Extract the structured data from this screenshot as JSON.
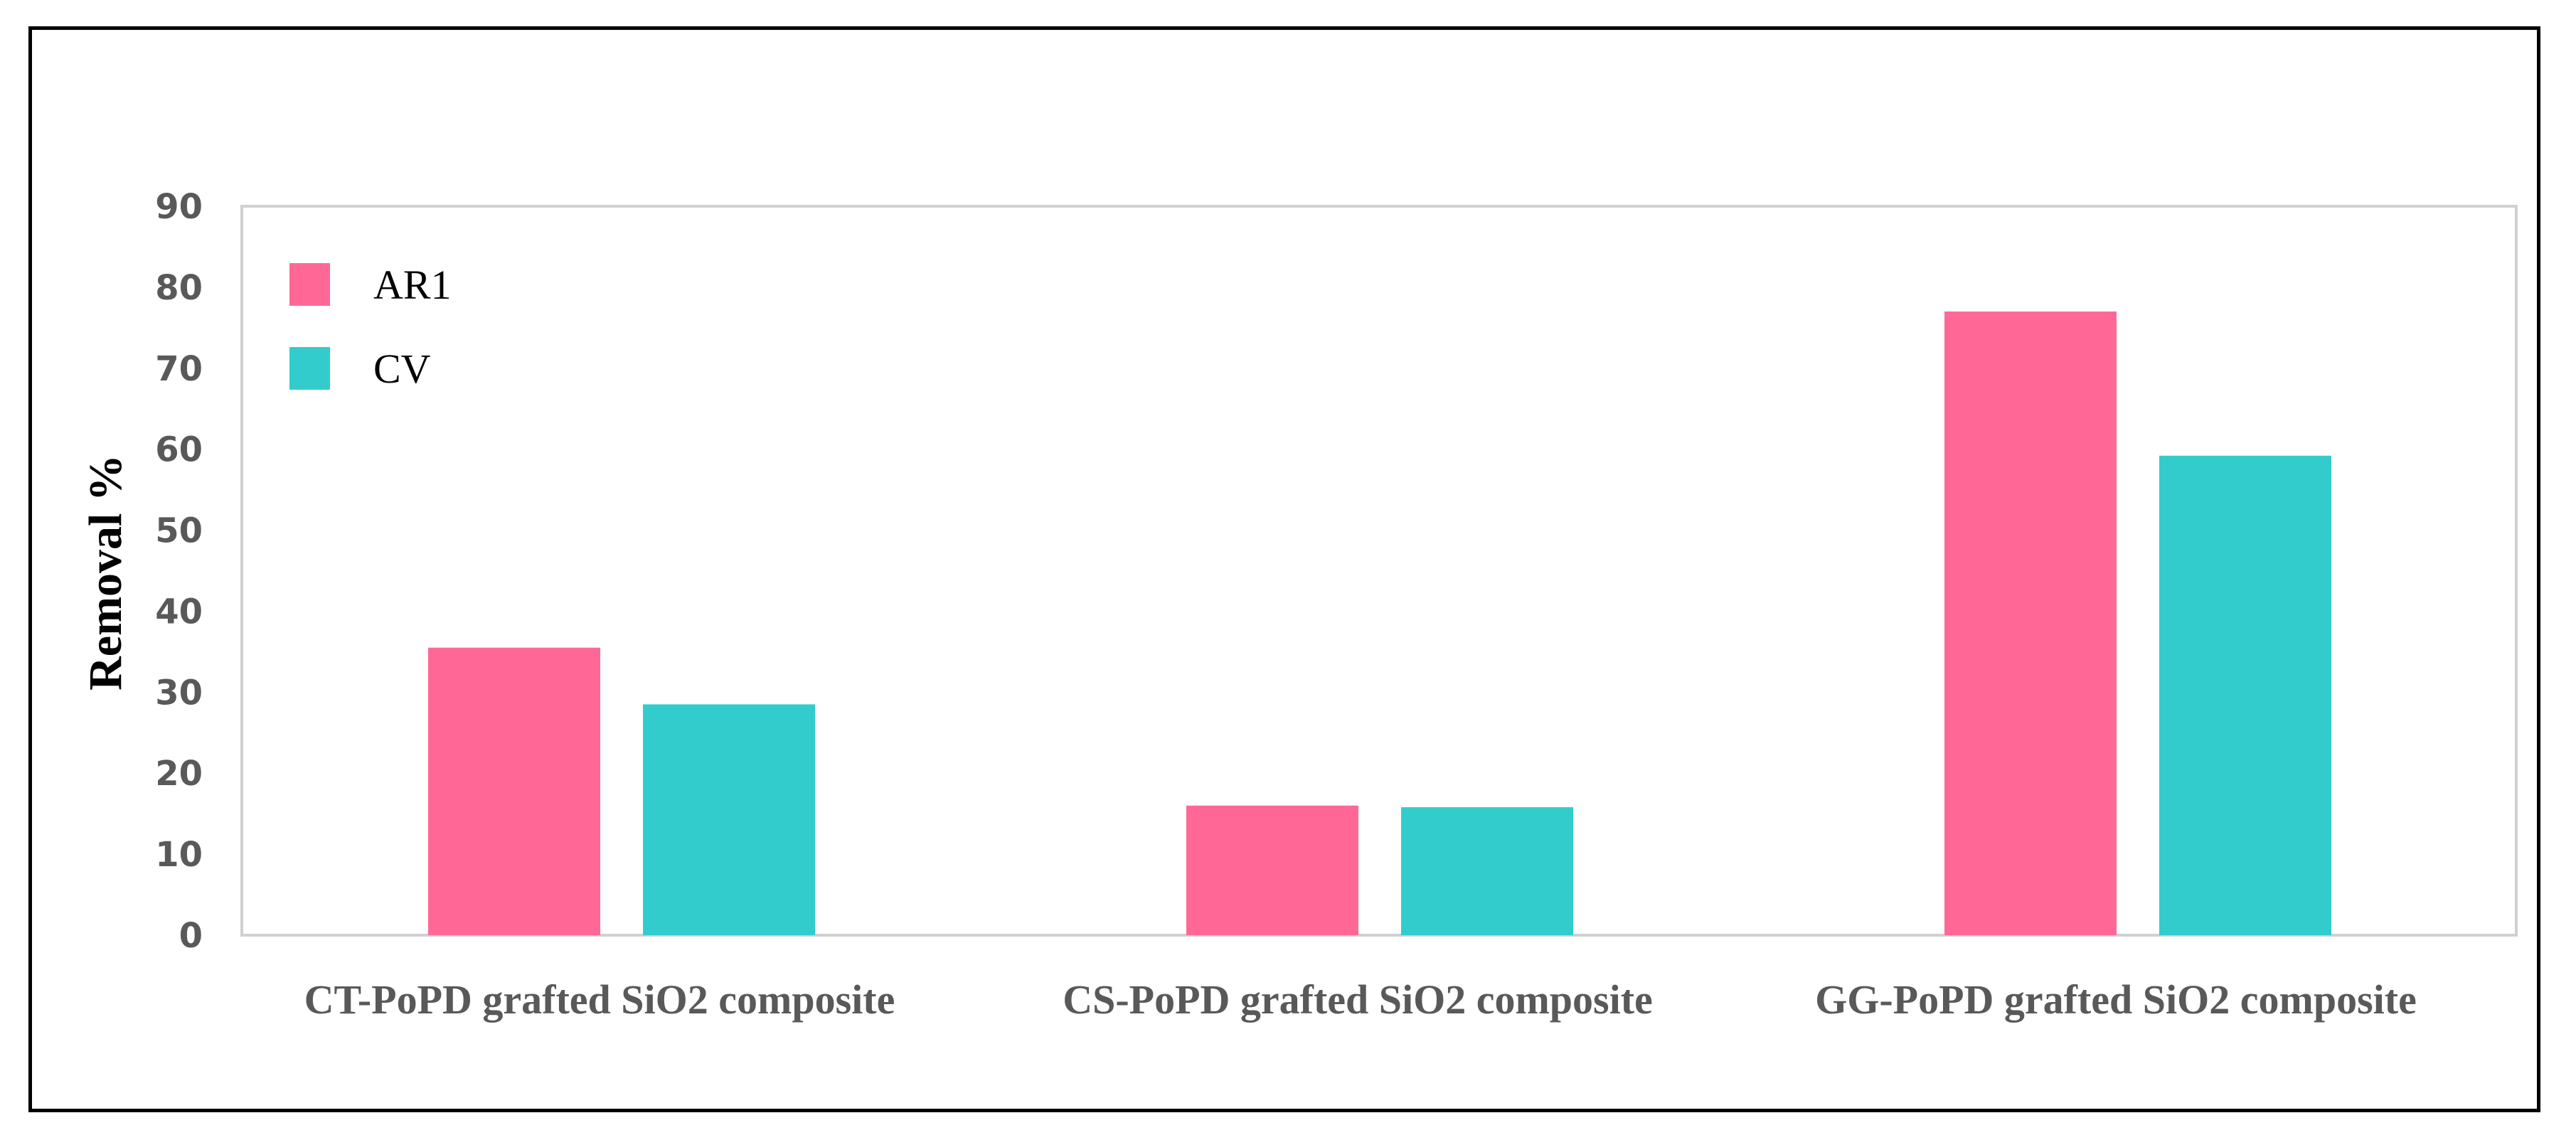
{
  "chart_data": {
    "type": "bar",
    "title": "",
    "xlabel": "",
    "ylabel": "Removal %",
    "categories": [
      "CT-PoPD grafted SiO2 composite",
      "CS-PoPD grafted SiO2 composite",
      "GG-PoPD grafted SiO2 composite"
    ],
    "series": [
      {
        "name": "AR1",
        "color": "#FF6896",
        "values": [
          35.5,
          16,
          77
        ]
      },
      {
        "name": "CV",
        "color": "#33CCCC",
        "values": [
          28.5,
          15.8,
          59.2
        ]
      }
    ],
    "ylim": [
      0,
      90
    ],
    "yticks": [
      "0",
      "10",
      "20",
      "30",
      "40",
      "50",
      "60",
      "70",
      "80",
      "90"
    ],
    "grid": false,
    "legend_position": "top-left"
  }
}
